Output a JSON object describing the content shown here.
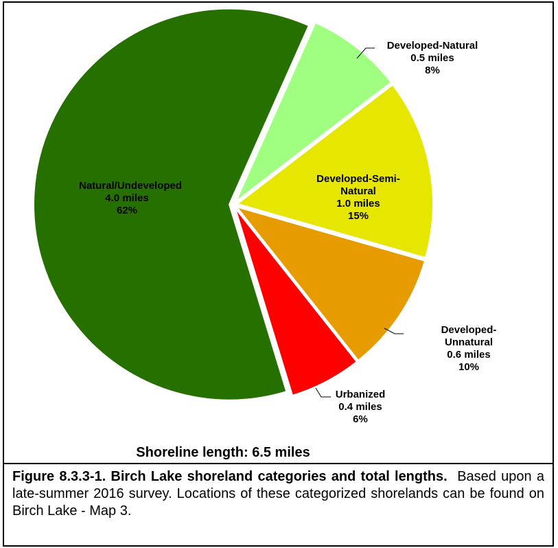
{
  "chart_data": {
    "type": "pie",
    "categories": [
      "Natural/Undeveloped",
      "Developed-Natural",
      "Developed-Semi-Natural",
      "Developed-Unnatural",
      "Urbanized"
    ],
    "values": [
      62,
      8,
      15,
      10,
      6
    ],
    "value_labels": [
      "62%",
      "8%",
      "15%",
      "10%",
      "6%"
    ],
    "lengths": [
      4.0,
      0.5,
      1.0,
      0.6,
      0.4
    ],
    "length_labels": [
      "4.0 miles",
      "0.5 miles",
      "1.0 miles",
      "0.6 miles",
      "0.4 miles"
    ],
    "colors": [
      "#267000",
      "#a0ff80",
      "#e6e600",
      "#e69b00",
      "#ff0000"
    ],
    "subtitle": "Shoreline length: 6.5 miles"
  },
  "caption": {
    "title": "Figure 8.3.3-1.  Birch Lake shoreland categories and total lengths.",
    "text": "Based upon a late-summer 2016 survey.  Locations of these categorized shorelands can be found on Birch Lake - Map 3."
  }
}
